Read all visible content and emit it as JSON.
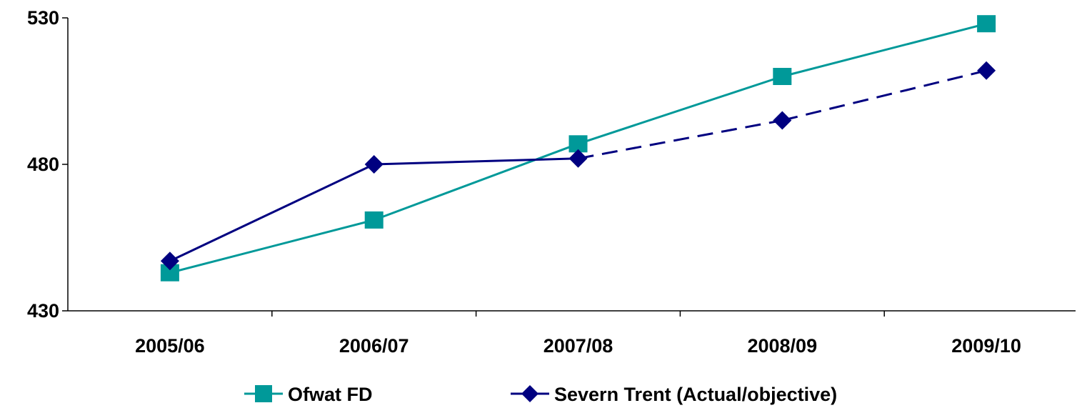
{
  "chart_data": {
    "type": "line",
    "categories": [
      "2005/06",
      "2006/07",
      "2007/08",
      "2008/09",
      "2009/10"
    ],
    "ylim": [
      430,
      530
    ],
    "yticks": [
      430,
      480,
      530
    ],
    "grid": false,
    "legend_position": "bottom",
    "series": [
      {
        "name": "Ofwat FD",
        "values": [
          443,
          461,
          487,
          510,
          528
        ],
        "color": "#009999",
        "marker": "square",
        "line_style": "solid"
      },
      {
        "name": "Severn Trent (Actual/objective)",
        "values": [
          447,
          480,
          482,
          495,
          512
        ],
        "color": "#000080",
        "marker": "diamond",
        "line_style": "solid-then-dashed",
        "dashed_from_index": 2
      }
    ]
  }
}
